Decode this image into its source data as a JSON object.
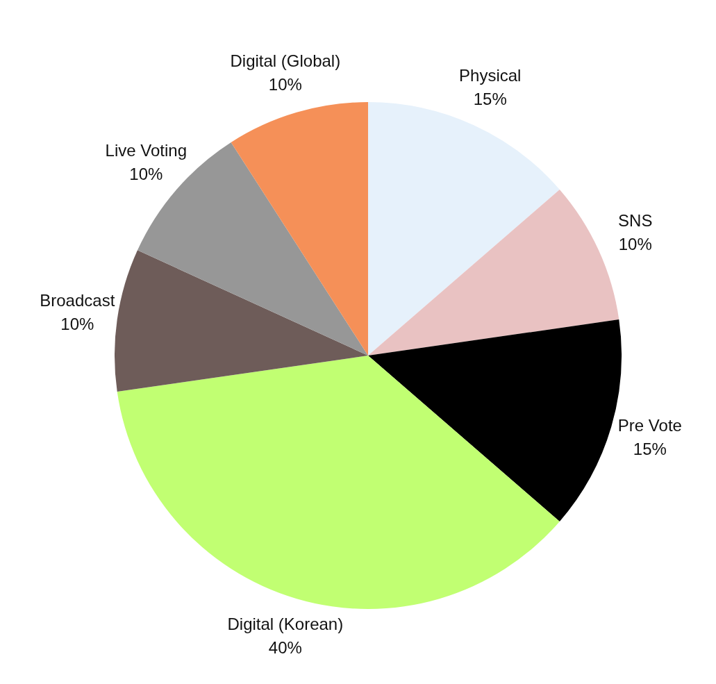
{
  "chart_data": {
    "type": "pie",
    "categories": [
      "Physical",
      "SNS",
      "Pre Vote",
      "Digital (Korean)",
      "Broadcast",
      "Live Voting",
      "Digital (Global)"
    ],
    "values": [
      15,
      10,
      15,
      40,
      10,
      10,
      10
    ],
    "value_labels": [
      "15%",
      "10%",
      "15%",
      "40%",
      "10%",
      "10%",
      "10%"
    ],
    "colors": [
      "#e6f1fb",
      "#e9c2c2",
      "#000000",
      "#c1ff72",
      "#6e5c59",
      "#979797",
      "#f59058"
    ],
    "legend": false
  }
}
